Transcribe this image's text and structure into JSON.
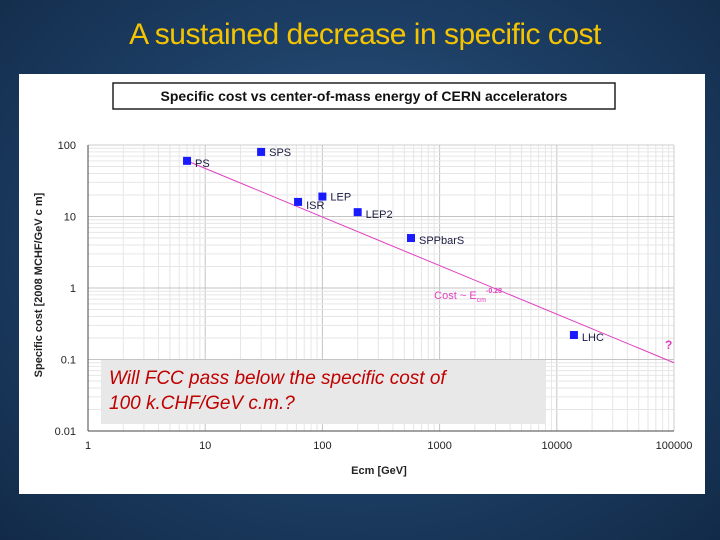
{
  "slide": {
    "title": "A sustained decrease in specific cost"
  },
  "question": {
    "line1": "Will FCC pass below the specific cost of",
    "line2": "100 k.CHF/GeV c.m.?"
  },
  "colors": {
    "title": "#f5c400",
    "points": "#1a1aff",
    "trend": "#e040c0",
    "question": "#c00000"
  },
  "chart_data": {
    "type": "scatter",
    "title": "Specific cost vs center-of-mass energy of CERN accelerators",
    "xlabel": "Ecm [GeV]",
    "ylabel": "Specific cost [2008 MCHF/GeV c m]",
    "xscale": "log",
    "yscale": "log",
    "xlim": [
      1,
      100000
    ],
    "ylim": [
      0.01,
      100
    ],
    "x_ticks": [
      "1",
      "10",
      "100",
      "1000",
      "10000",
      "100000"
    ],
    "y_ticks": [
      "0.01",
      "0.1",
      "1",
      "10",
      "100"
    ],
    "grid": true,
    "series": [
      {
        "points": [
          {
            "label": "PS",
            "x": 7,
            "y": 60
          },
          {
            "label": "SPS",
            "x": 30,
            "y": 80
          },
          {
            "label": "ISR",
            "x": 62,
            "y": 16
          },
          {
            "label": "LEP",
            "x": 100,
            "y": 19
          },
          {
            "label": "LEP2",
            "x": 200,
            "y": 11.5
          },
          {
            "label": "SPPbarS",
            "x": 570,
            "y": 5
          },
          {
            "label": "LHC",
            "x": 14000,
            "y": 0.22
          }
        ]
      }
    ],
    "trend": {
      "label": "Cost ~ E",
      "subscript": "cm",
      "exponent": "-0.28",
      "x": [
        7,
        100000
      ],
      "y": [
        60,
        0.09
      ]
    },
    "annotation": "?"
  }
}
